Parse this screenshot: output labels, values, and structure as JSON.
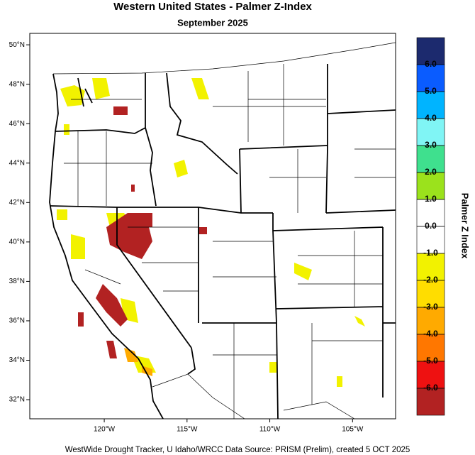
{
  "title": "Western United States - Palmer Z-Index",
  "subtitle": "September 2025",
  "map": {
    "lon_range": [
      -124.5,
      -102.4
    ],
    "lat_range": [
      31.03,
      50.58
    ],
    "lat_ticks": [
      {
        "value": 50,
        "label": "50°N"
      },
      {
        "value": 48,
        "label": "48°N"
      },
      {
        "value": 46,
        "label": "46°N"
      },
      {
        "value": 44,
        "label": "44°N"
      },
      {
        "value": 42,
        "label": "42°N"
      },
      {
        "value": 40,
        "label": "40°N"
      },
      {
        "value": 38,
        "label": "38°N"
      },
      {
        "value": 36,
        "label": "36°N"
      },
      {
        "value": 34,
        "label": "34°N"
      },
      {
        "value": 32,
        "label": "32°N"
      }
    ],
    "lon_ticks": [
      {
        "value": -120,
        "label": "120°W"
      },
      {
        "value": -115,
        "label": "115°W"
      },
      {
        "value": -110,
        "label": "110°W"
      },
      {
        "value": -105,
        "label": "105°W"
      }
    ]
  },
  "colorbar": {
    "label": "Palmer Z Index",
    "range": [
      -7,
      7
    ],
    "colors": [
      "#1c2a6e",
      "#0a5cff",
      "#00b4ff",
      "#80f5f5",
      "#3fe08e",
      "#9be21c",
      "#ffffff",
      "#ffffff",
      "#f2f200",
      "#ffdd00",
      "#ffaa00",
      "#ff7700",
      "#ee1111",
      "#b22222"
    ],
    "ticks": [
      {
        "value": 6,
        "label": "6.0"
      },
      {
        "value": 5,
        "label": "5.0"
      },
      {
        "value": 4,
        "label": "4.0"
      },
      {
        "value": 3,
        "label": "3.0"
      },
      {
        "value": 2,
        "label": "2.0"
      },
      {
        "value": 1,
        "label": "1.0"
      },
      {
        "value": 0,
        "label": "0.0"
      },
      {
        "value": -1,
        "label": "-1.0"
      },
      {
        "value": -2,
        "label": "-2.0"
      },
      {
        "value": -3,
        "label": "-3.0"
      },
      {
        "value": -4,
        "label": "-4.0"
      },
      {
        "value": -5,
        "label": "-5.0"
      },
      {
        "value": -6,
        "label": "-6.0"
      }
    ]
  },
  "footer": "WestWide Drought Tracker, U Idaho/WRCC Data Source: PRISM (Prelim), created  5 OCT 2025"
}
